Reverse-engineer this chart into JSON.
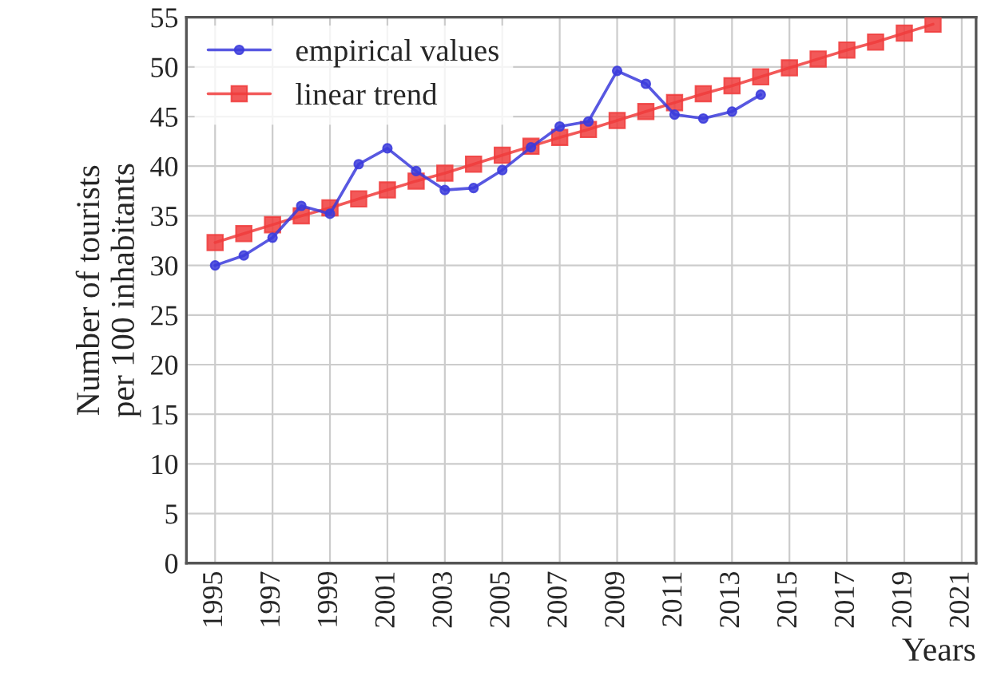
{
  "chart_data": {
    "type": "line",
    "xlabel": "Years",
    "ylabel": "Number of tourists\nper 100 inhabitants",
    "xlim": [
      1994,
      2021.5
    ],
    "xticks": [
      1995,
      1997,
      1999,
      2001,
      2003,
      2005,
      2007,
      2009,
      2011,
      2013,
      2015,
      2017,
      2019,
      2021
    ],
    "ylim": [
      0,
      55
    ],
    "yticks": [
      0,
      5,
      10,
      15,
      20,
      25,
      30,
      35,
      40,
      45,
      50,
      55
    ],
    "grid": true,
    "legend": "top left",
    "series": [
      {
        "name": "empirical values",
        "color": "#3b3bdc",
        "marker": "circle",
        "x": [
          1995,
          1996,
          1997,
          1998,
          1999,
          2000,
          2001,
          2002,
          2003,
          2004,
          2005,
          2006,
          2007,
          2008,
          2009,
          2010,
          2011,
          2012,
          2013,
          2014
        ],
        "values": [
          30,
          31,
          32.8,
          36,
          35.2,
          40.2,
          41.8,
          39.5,
          37.6,
          37.8,
          39.6,
          41.9,
          44,
          44.5,
          49.6,
          48.3,
          45.2,
          44.8,
          45.5,
          47.2
        ]
      },
      {
        "name": "linear trend",
        "color": "#f03c3c",
        "marker": "square",
        "x": [
          1995,
          1996,
          1997,
          1998,
          1999,
          2000,
          2001,
          2002,
          2003,
          2004,
          2005,
          2006,
          2007,
          2008,
          2009,
          2010,
          2011,
          2012,
          2013,
          2014,
          2015,
          2016,
          2017,
          2018,
          2019,
          2020
        ],
        "values": [
          32.3,
          33.2,
          34.1,
          35.0,
          35.8,
          36.7,
          37.6,
          38.5,
          39.3,
          40.2,
          41.1,
          42.0,
          42.9,
          43.7,
          44.6,
          45.5,
          46.4,
          47.3,
          48.1,
          49.0,
          49.9,
          50.8,
          51.7,
          52.5,
          53.4,
          54.3
        ]
      }
    ]
  }
}
